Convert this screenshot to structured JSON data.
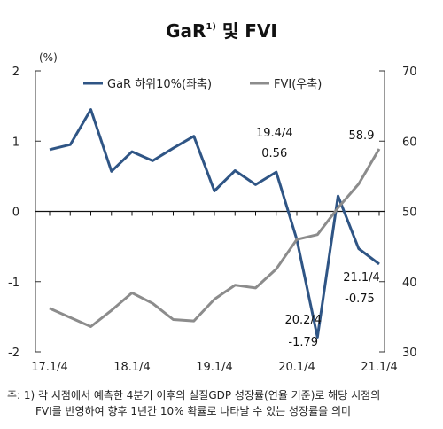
{
  "chart_data": {
    "type": "line",
    "title": "GaR",
    "title_sup": "1)",
    "title_rest": " 및 FVI",
    "left_unit": "(%)",
    "x_tick_labels": [
      "17.1/4",
      "18.1/4",
      "19.1/4",
      "20.1/4",
      "21.1/4"
    ],
    "x_tick_index": [
      0,
      4,
      8,
      12,
      16
    ],
    "ylim_left": [
      -2,
      2
    ],
    "y_ticks_left": [
      -2,
      -1,
      0,
      1,
      2
    ],
    "y_tick_labels_left": [
      "-2",
      "-1",
      "0",
      "1",
      "2"
    ],
    "ylim_right": [
      30,
      70
    ],
    "y_ticks_right": [
      30,
      40,
      50,
      60,
      70
    ],
    "y_tick_labels_right": [
      "30",
      "40",
      "50",
      "60",
      "70"
    ],
    "legend_position": "top",
    "series": [
      {
        "name": "GaR 하위10%(좌축)",
        "axis": "left",
        "color": "#2f5585",
        "values": [
          0.88,
          0.95,
          1.45,
          0.57,
          0.85,
          0.72,
          0.9,
          1.07,
          0.29,
          0.58,
          0.38,
          0.56,
          -0.4,
          -1.79,
          0.22,
          -0.53,
          -0.75
        ]
      },
      {
        "name": "FVI(우축)",
        "axis": "right",
        "color": "#8c8c8c",
        "values": [
          36.2,
          34.9,
          33.6,
          35.9,
          38.4,
          36.9,
          34.6,
          34.4,
          37.5,
          39.5,
          39.1,
          41.8,
          46.0,
          46.7,
          50.5,
          53.9,
          58.9
        ]
      }
    ],
    "annotations": [
      {
        "label": "19.4/4",
        "value": "0.56"
      },
      {
        "label": "20.2/4",
        "value": "-1.79"
      },
      {
        "label": "21.1/4",
        "value": "-0.75"
      },
      {
        "label": "",
        "value": "58.9"
      }
    ]
  },
  "footnote": {
    "line1": "주: 1) 각 시점에서 예측한 4분기 이후의 실질GDP 성장률(연율 기준)로 해당 시점의",
    "line2": "FVI를 반영하여 향후 1년간 10% 확률로 나타날 수 있는 성장률을 의미"
  }
}
